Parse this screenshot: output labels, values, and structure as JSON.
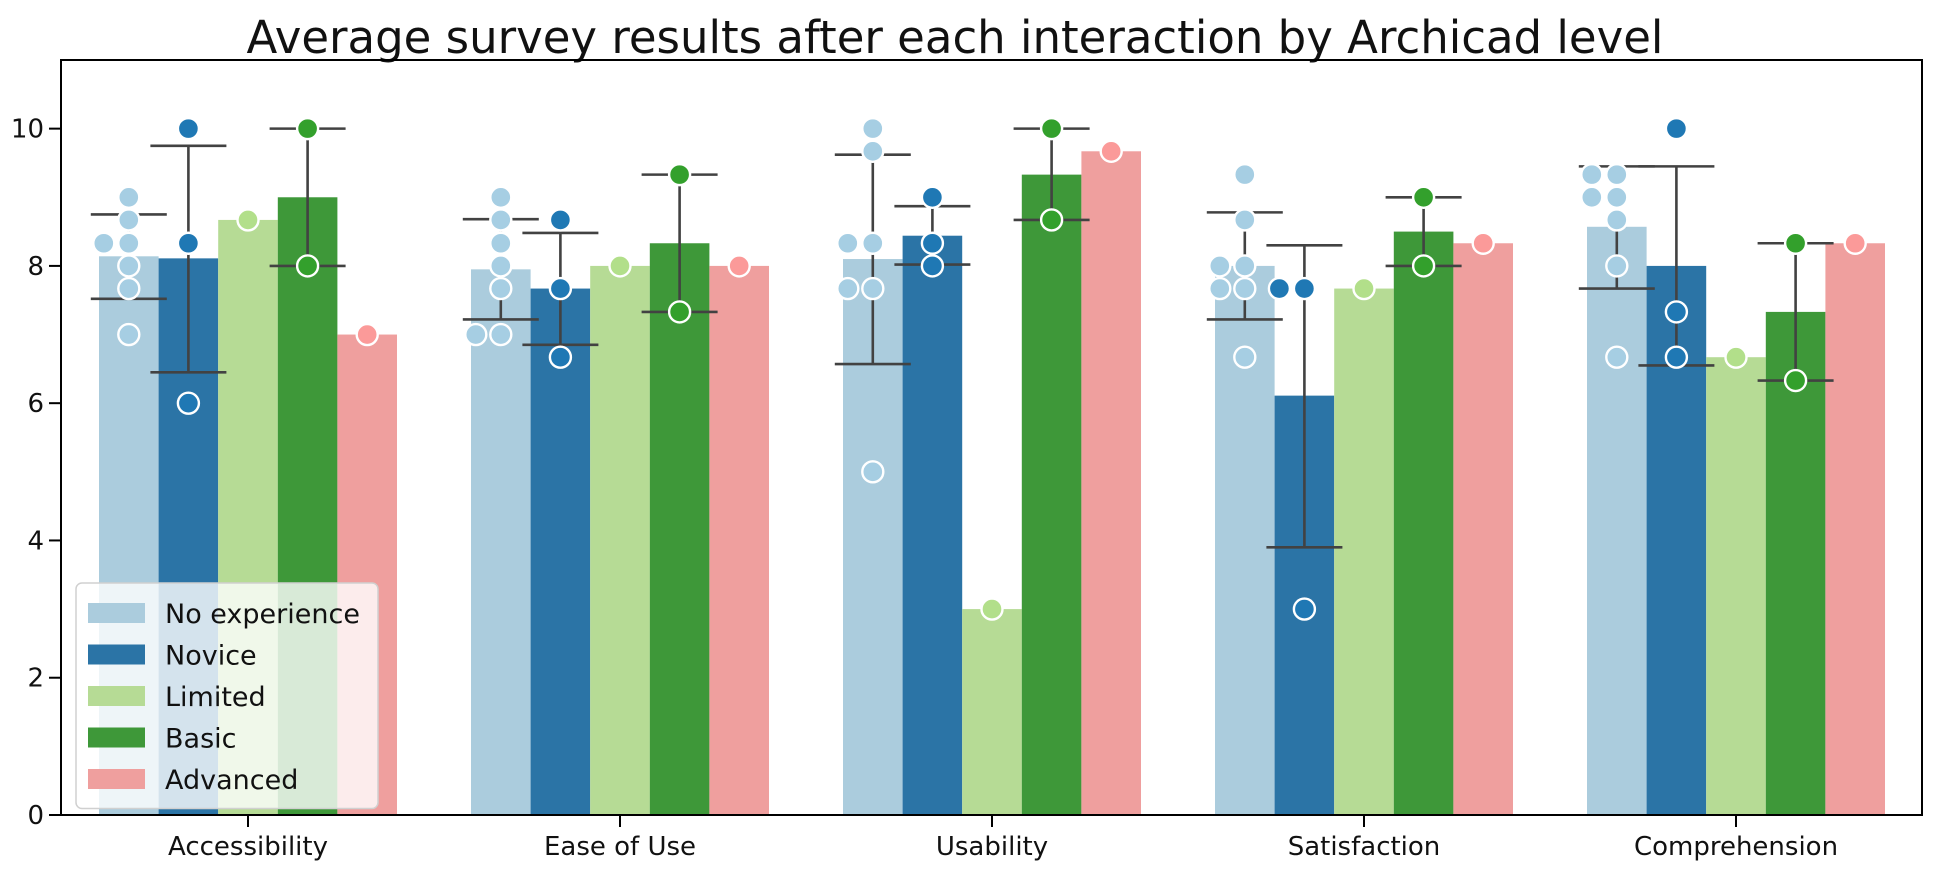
{
  "chart_data": {
    "type": "bar",
    "title": "Average survey results after each interaction by Archicad level",
    "xlabel": "",
    "ylabel": "",
    "ylim": [
      0,
      11
    ],
    "yticks": [
      0,
      2,
      4,
      6,
      8,
      10
    ],
    "grid": false,
    "legend_position": "lower-left",
    "categories": [
      "Accessibility",
      "Ease of Use",
      "Usability",
      "Satisfaction",
      "Comprehension"
    ],
    "series": [
      {
        "name": "No experience",
        "color": "#a6cee3",
        "values": [
          8.14,
          7.95,
          8.1,
          8.0,
          8.57
        ],
        "error": [
          [
            7.52,
            8.75
          ],
          [
            7.22,
            8.68
          ],
          [
            6.57,
            9.62
          ],
          [
            7.22,
            8.78
          ],
          [
            7.67,
            9.45
          ]
        ],
        "points": [
          [
            9.0,
            8.67,
            8.33,
            8.33,
            8.0,
            7.67,
            7.0
          ],
          [
            9.0,
            8.67,
            8.33,
            8.0,
            7.67,
            7.0,
            7.0
          ],
          [
            10.0,
            9.67,
            8.33,
            8.33,
            7.67,
            7.67,
            5.0
          ],
          [
            9.33,
            8.67,
            8.0,
            8.0,
            7.67,
            7.67,
            6.67
          ],
          [
            9.33,
            9.33,
            9.0,
            9.0,
            8.67,
            8.0,
            6.67
          ]
        ]
      },
      {
        "name": "Novice",
        "color": "#1f78b4",
        "values": [
          8.11,
          7.67,
          8.44,
          6.11,
          8.0
        ],
        "error": [
          [
            6.45,
            9.75
          ],
          [
            6.85,
            8.48
          ],
          [
            8.02,
            8.87
          ],
          [
            3.9,
            8.3
          ],
          [
            6.55,
            9.45
          ]
        ],
        "points": [
          [
            10.0,
            8.33,
            6.0
          ],
          [
            8.67,
            7.67,
            6.67
          ],
          [
            9.0,
            8.33,
            8.0
          ],
          [
            7.67,
            7.67,
            3.0
          ],
          [
            10.0,
            7.33,
            6.67
          ]
        ]
      },
      {
        "name": "Limited",
        "color": "#b2df8a",
        "values": [
          8.67,
          8.0,
          3.0,
          7.67,
          6.67
        ],
        "error": [
          null,
          null,
          null,
          null,
          null
        ],
        "points": [
          [
            8.67
          ],
          [
            8.0
          ],
          [
            3.0
          ],
          [
            7.67
          ],
          [
            6.67
          ]
        ]
      },
      {
        "name": "Basic",
        "color": "#33a02c",
        "values": [
          9.0,
          8.33,
          9.33,
          8.5,
          7.33
        ],
        "error": [
          [
            8.0,
            10.0
          ],
          [
            7.33,
            9.33
          ],
          [
            8.67,
            10.0
          ],
          [
            8.0,
            9.0
          ],
          [
            6.33,
            8.33
          ]
        ],
        "points": [
          [
            10.0,
            8.0
          ],
          [
            9.33,
            7.33
          ],
          [
            10.0,
            8.67
          ],
          [
            9.0,
            8.0
          ],
          [
            8.33,
            6.33
          ]
        ]
      },
      {
        "name": "Advanced",
        "color": "#fb9a99",
        "values": [
          7.0,
          8.0,
          9.67,
          8.33,
          8.33
        ],
        "error": [
          null,
          null,
          null,
          null,
          null
        ],
        "points": [
          [
            7.0
          ],
          [
            8.0
          ],
          [
            9.67
          ],
          [
            8.33
          ],
          [
            8.33
          ]
        ]
      }
    ]
  }
}
